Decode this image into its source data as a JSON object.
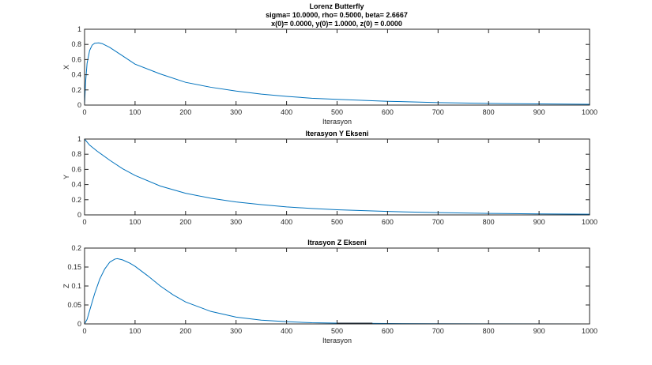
{
  "figure": {
    "suptitle_lines": [
      "Lorenz Butterfly",
      "sigma= 10.0000, rho= 0.5000, beta= 2.6667",
      "x(0)= 0.0000, y(0)= 1.0000, z(0) = 0.0000"
    ],
    "line_color": "#0072bd"
  },
  "chart_data": [
    {
      "type": "line",
      "title": "",
      "xlabel": "Iterasyon",
      "ylabel": "X",
      "xlim": [
        0,
        1000
      ],
      "ylim": [
        0,
        1
      ],
      "xticks": [
        0,
        100,
        200,
        300,
        400,
        500,
        600,
        700,
        800,
        900,
        1000
      ],
      "yticks": [
        0,
        0.2,
        0.4,
        0.6,
        0.8,
        1
      ],
      "ytick_labels": [
        "0",
        "0.2",
        "0.4",
        "0.6",
        "0.8",
        "1"
      ],
      "grid": false,
      "x": [
        0,
        2,
        5,
        10,
        15,
        20,
        28,
        35,
        50,
        75,
        100,
        150,
        200,
        250,
        300,
        350,
        400,
        450,
        500,
        600,
        700,
        800,
        900,
        1000
      ],
      "y": [
        0.0,
        0.3,
        0.55,
        0.72,
        0.79,
        0.815,
        0.82,
        0.81,
        0.76,
        0.65,
        0.54,
        0.41,
        0.3,
        0.235,
        0.185,
        0.145,
        0.115,
        0.09,
        0.075,
        0.05,
        0.033,
        0.022,
        0.015,
        0.01
      ]
    },
    {
      "type": "line",
      "title": "Iterasyon Y Ekseni",
      "xlabel": "",
      "ylabel": "Y",
      "xlim": [
        0,
        1000
      ],
      "ylim": [
        0,
        1
      ],
      "xticks": [
        0,
        100,
        200,
        300,
        400,
        500,
        600,
        700,
        800,
        900,
        1000
      ],
      "yticks": [
        0,
        0.2,
        0.4,
        0.6,
        0.8,
        1
      ],
      "ytick_labels": [
        "0",
        "0.2",
        "0.4",
        "0.6",
        "0.8",
        "1"
      ],
      "grid": false,
      "x": [
        0,
        10,
        25,
        50,
        75,
        100,
        150,
        200,
        250,
        300,
        350,
        400,
        450,
        500,
        600,
        700,
        800,
        900,
        1000
      ],
      "y": [
        1.0,
        0.92,
        0.84,
        0.72,
        0.61,
        0.52,
        0.38,
        0.285,
        0.22,
        0.17,
        0.135,
        0.105,
        0.085,
        0.068,
        0.045,
        0.03,
        0.02,
        0.013,
        0.009
      ]
    },
    {
      "type": "line",
      "title": "Itrasyon Z Ekseni",
      "xlabel": "Iterasyon",
      "ylabel": "Z",
      "xlim": [
        0,
        1000
      ],
      "ylim": [
        0,
        0.2
      ],
      "xticks": [
        0,
        100,
        200,
        300,
        400,
        500,
        600,
        700,
        800,
        900,
        1000
      ],
      "yticks": [
        0,
        0.05,
        0.1,
        0.15,
        0.2
      ],
      "ytick_labels": [
        "0",
        "0.05",
        "0.1",
        "0.15",
        "0.2"
      ],
      "grid": false,
      "x": [
        0,
        5,
        10,
        20,
        30,
        40,
        50,
        60,
        65,
        75,
        90,
        100,
        125,
        150,
        175,
        200,
        250,
        300,
        350,
        400,
        450,
        500,
        600,
        700,
        800,
        1000
      ],
      "y": [
        0.0,
        0.012,
        0.035,
        0.08,
        0.118,
        0.145,
        0.163,
        0.171,
        0.172,
        0.169,
        0.16,
        0.152,
        0.127,
        0.1,
        0.077,
        0.058,
        0.033,
        0.018,
        0.01,
        0.006,
        0.003,
        0.002,
        0.001,
        0.0005,
        0.0002,
        0.0
      ]
    }
  ]
}
